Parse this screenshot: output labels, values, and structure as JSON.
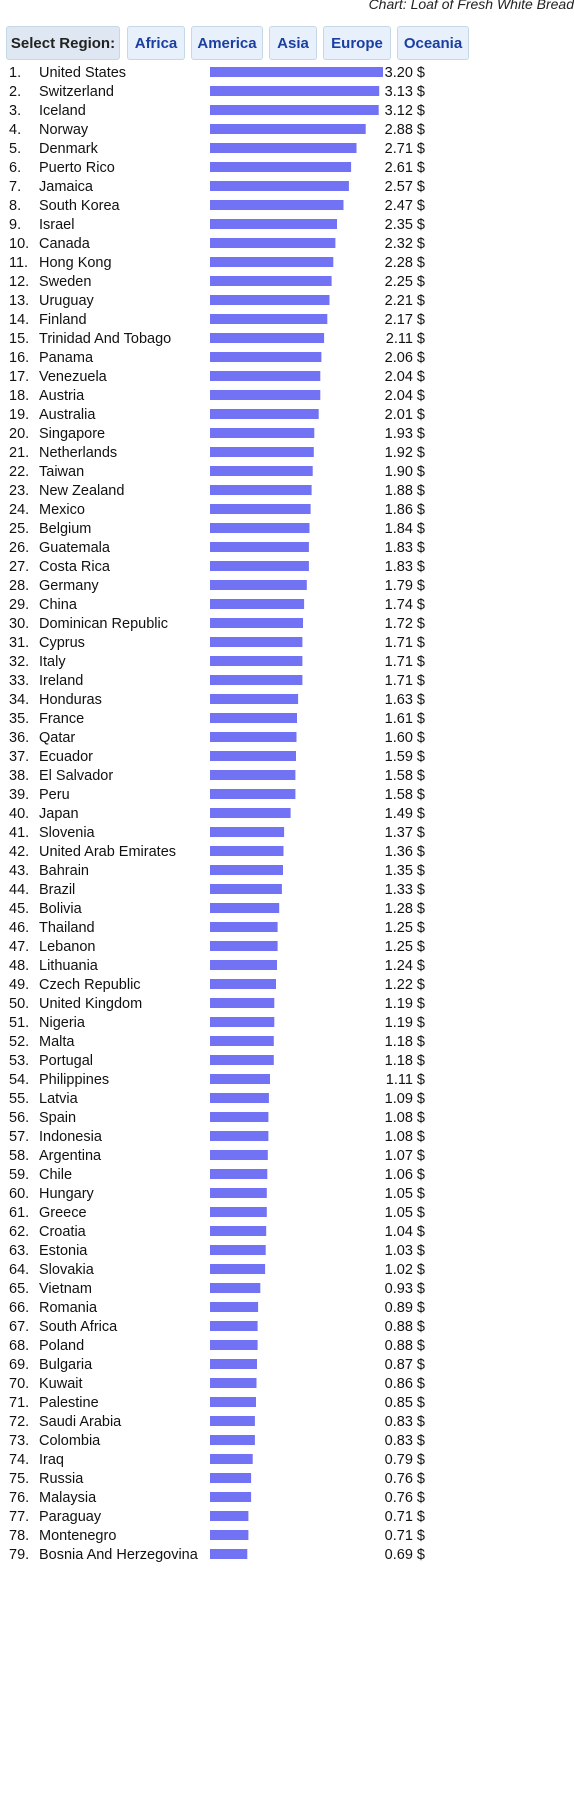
{
  "chart_title": "Chart: Loaf of Fresh White Bread",
  "region_selector": {
    "label": "Select Region:",
    "buttons": [
      "Africa",
      "America",
      "Asia",
      "Europe",
      "Oceania"
    ]
  },
  "colors": {
    "bar": "#7272f4",
    "button_bg": "#e8f1fb",
    "button_text": "#1b3fa0"
  },
  "chart_data": {
    "type": "bar",
    "orientation": "horizontal",
    "title": "Chart: Loaf of Fresh White Bread",
    "value_suffix": " $",
    "xlim": [
      0,
      3.2
    ],
    "grid": false,
    "categories": [
      "United States",
      "Switzerland",
      "Iceland",
      "Norway",
      "Denmark",
      "Puerto Rico",
      "Jamaica",
      "South Korea",
      "Israel",
      "Canada",
      "Hong Kong",
      "Sweden",
      "Uruguay",
      "Finland",
      "Trinidad And Tobago",
      "Panama",
      "Venezuela",
      "Austria",
      "Australia",
      "Singapore",
      "Netherlands",
      "Taiwan",
      "New Zealand",
      "Mexico",
      "Belgium",
      "Guatemala",
      "Costa Rica",
      "Germany",
      "China",
      "Dominican Republic",
      "Cyprus",
      "Italy",
      "Ireland",
      "Honduras",
      "France",
      "Qatar",
      "Ecuador",
      "El Salvador",
      "Peru",
      "Japan",
      "Slovenia",
      "United Arab Emirates",
      "Bahrain",
      "Brazil",
      "Bolivia",
      "Thailand",
      "Lebanon",
      "Lithuania",
      "Czech Republic",
      "United Kingdom",
      "Nigeria",
      "Malta",
      "Portugal",
      "Philippines",
      "Latvia",
      "Spain",
      "Indonesia",
      "Argentina",
      "Chile",
      "Hungary",
      "Greece",
      "Croatia",
      "Estonia",
      "Slovakia",
      "Vietnam",
      "Romania",
      "South Africa",
      "Poland",
      "Bulgaria",
      "Kuwait",
      "Palestine",
      "Saudi Arabia",
      "Colombia",
      "Iraq",
      "Russia",
      "Malaysia",
      "Paraguay",
      "Montenegro",
      "Bosnia And Herzegovina"
    ],
    "values": [
      3.2,
      3.13,
      3.12,
      2.88,
      2.71,
      2.61,
      2.57,
      2.47,
      2.35,
      2.32,
      2.28,
      2.25,
      2.21,
      2.17,
      2.11,
      2.06,
      2.04,
      2.04,
      2.01,
      1.93,
      1.92,
      1.9,
      1.88,
      1.86,
      1.84,
      1.83,
      1.83,
      1.79,
      1.74,
      1.72,
      1.71,
      1.71,
      1.71,
      1.63,
      1.61,
      1.6,
      1.59,
      1.58,
      1.58,
      1.49,
      1.37,
      1.36,
      1.35,
      1.33,
      1.28,
      1.25,
      1.25,
      1.24,
      1.22,
      1.19,
      1.19,
      1.18,
      1.18,
      1.11,
      1.09,
      1.08,
      1.08,
      1.07,
      1.06,
      1.05,
      1.05,
      1.04,
      1.03,
      1.02,
      0.93,
      0.89,
      0.88,
      0.88,
      0.87,
      0.86,
      0.85,
      0.83,
      0.83,
      0.79,
      0.76,
      0.76,
      0.71,
      0.71,
      0.69
    ],
    "value_labels": [
      "3.20 $",
      "3.13 $",
      "3.12 $",
      "2.88 $",
      "2.71 $",
      "2.61 $",
      "2.57 $",
      "2.47 $",
      "2.35 $",
      "2.32 $",
      "2.28 $",
      "2.25 $",
      "2.21 $",
      "2.17 $",
      "2.11 $",
      "2.06 $",
      "2.04 $",
      "2.04 $",
      "2.01 $",
      "1.93 $",
      "1.92 $",
      "1.90 $",
      "1.88 $",
      "1.86 $",
      "1.84 $",
      "1.83 $",
      "1.83 $",
      "1.79 $",
      "1.74 $",
      "1.72 $",
      "1.71 $",
      "1.71 $",
      "1.71 $",
      "1.63 $",
      "1.61 $",
      "1.60 $",
      "1.59 $",
      "1.58 $",
      "1.58 $",
      "1.49 $",
      "1.37 $",
      "1.36 $",
      "1.35 $",
      "1.33 $",
      "1.28 $",
      "1.25 $",
      "1.25 $",
      "1.24 $",
      "1.22 $",
      "1.19 $",
      "1.19 $",
      "1.18 $",
      "1.18 $",
      "1.11 $",
      "1.09 $",
      "1.08 $",
      "1.08 $",
      "1.07 $",
      "1.06 $",
      "1.05 $",
      "1.05 $",
      "1.04 $",
      "1.03 $",
      "1.02 $",
      "0.93 $",
      "0.89 $",
      "0.88 $",
      "0.88 $",
      "0.87 $",
      "0.86 $",
      "0.85 $",
      "0.83 $",
      "0.83 $",
      "0.79 $",
      "0.76 $",
      "0.76 $",
      "0.71 $",
      "0.71 $",
      "0.69 $"
    ],
    "rank_labels": [
      "1.",
      "2.",
      "3.",
      "4.",
      "5.",
      "6.",
      "7.",
      "8.",
      "9.",
      "10.",
      "11.",
      "12.",
      "13.",
      "14.",
      "15.",
      "16.",
      "17.",
      "18.",
      "19.",
      "20.",
      "21.",
      "22.",
      "23.",
      "24.",
      "25.",
      "26.",
      "27.",
      "28.",
      "29.",
      "30.",
      "31.",
      "32.",
      "33.",
      "34.",
      "35.",
      "36.",
      "37.",
      "38.",
      "39.",
      "40.",
      "41.",
      "42.",
      "43.",
      "44.",
      "45.",
      "46.",
      "47.",
      "48.",
      "49.",
      "50.",
      "51.",
      "52.",
      "53.",
      "54.",
      "55.",
      "56.",
      "57.",
      "58.",
      "59.",
      "60.",
      "61.",
      "62.",
      "63.",
      "64.",
      "65.",
      "66.",
      "67.",
      "68.",
      "69.",
      "70.",
      "71.",
      "72.",
      "73.",
      "74.",
      "75.",
      "76.",
      "77.",
      "78.",
      "79."
    ]
  }
}
